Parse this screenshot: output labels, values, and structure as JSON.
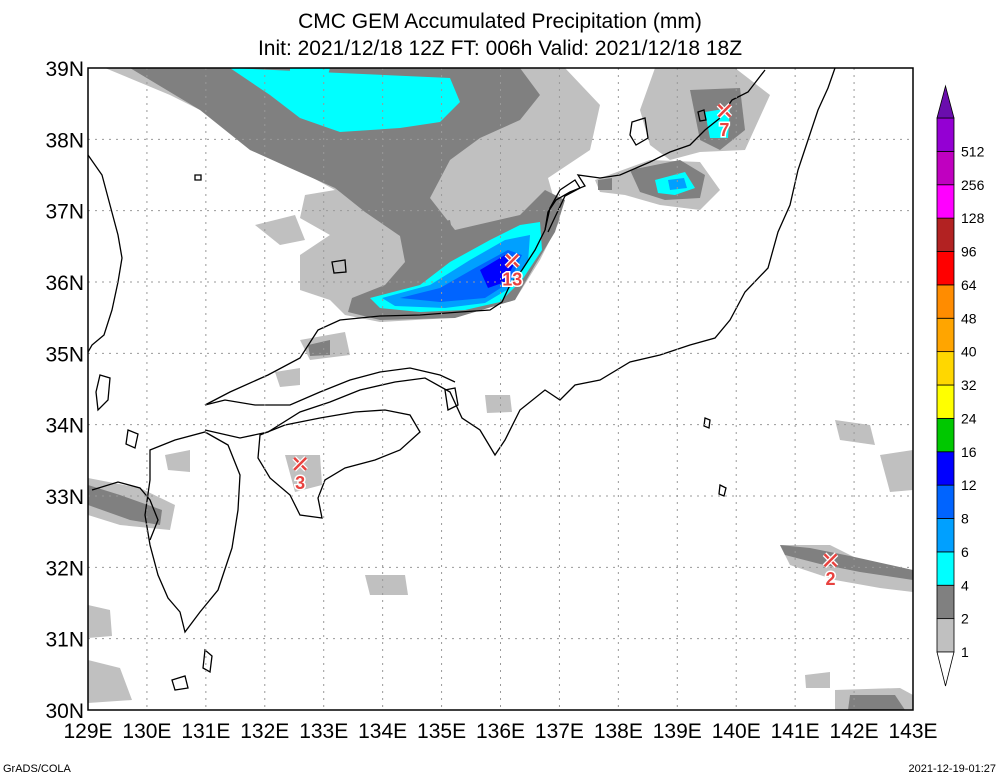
{
  "title": {
    "line1": "CMC GEM Accumulated Precipitation (mm)",
    "line2": "Init: 2021/12/18 12Z  FT: 006h  Valid: 2021/12/18 18Z"
  },
  "map": {
    "lon_range": [
      129,
      143
    ],
    "lat_range": [
      30,
      39
    ],
    "lon_ticks": [
      {
        "v": 129,
        "label": "129E"
      },
      {
        "v": 130,
        "label": "130E"
      },
      {
        "v": 131,
        "label": "131E"
      },
      {
        "v": 132,
        "label": "132E"
      },
      {
        "v": 133,
        "label": "133E"
      },
      {
        "v": 134,
        "label": "134E"
      },
      {
        "v": 135,
        "label": "135E"
      },
      {
        "v": 136,
        "label": "136E"
      },
      {
        "v": 137,
        "label": "137E"
      },
      {
        "v": 138,
        "label": "138E"
      },
      {
        "v": 139,
        "label": "139E"
      },
      {
        "v": 140,
        "label": "140E"
      },
      {
        "v": 141,
        "label": "141E"
      },
      {
        "v": 142,
        "label": "142E"
      },
      {
        "v": 143,
        "label": "143E"
      }
    ],
    "lat_ticks": [
      {
        "v": 30,
        "label": "30N"
      },
      {
        "v": 31,
        "label": "31N"
      },
      {
        "v": 32,
        "label": "32N"
      },
      {
        "v": 33,
        "label": "33N"
      },
      {
        "v": 34,
        "label": "34N"
      },
      {
        "v": 35,
        "label": "35N"
      },
      {
        "v": 36,
        "label": "36N"
      },
      {
        "v": 37,
        "label": "37N"
      },
      {
        "v": 38,
        "label": "38N"
      },
      {
        "v": 39,
        "label": "39N"
      }
    ],
    "grid": true
  },
  "colorbar": {
    "levels": [
      {
        "label": "1",
        "color": "#c0c0c0"
      },
      {
        "label": "2",
        "color": "#808080"
      },
      {
        "label": "4",
        "color": "#00ffff"
      },
      {
        "label": "6",
        "color": "#00a0ff"
      },
      {
        "label": "8",
        "color": "#0064ff"
      },
      {
        "label": "12",
        "color": "#0000ff"
      },
      {
        "label": "16",
        "color": "#00c800"
      },
      {
        "label": "24",
        "color": "#ffff00"
      },
      {
        "label": "32",
        "color": "#ffd700"
      },
      {
        "label": "40",
        "color": "#ffa500"
      },
      {
        "label": "48",
        "color": "#ff8c00"
      },
      {
        "label": "64",
        "color": "#ff0000"
      },
      {
        "label": "96",
        "color": "#b22222"
      },
      {
        "label": "128",
        "color": "#ff00ff"
      },
      {
        "label": "256",
        "color": "#c000c0"
      },
      {
        "label": "512",
        "color": "#9400d3"
      }
    ],
    "top_color": "#6a0dad"
  },
  "maxima": [
    {
      "lon": 136.2,
      "lat": 36.3,
      "label": "13"
    },
    {
      "lon": 139.8,
      "lat": 38.4,
      "label": "7"
    },
    {
      "lon": 132.6,
      "lat": 33.45,
      "label": "3"
    },
    {
      "lon": 141.6,
      "lat": 32.1,
      "label": "2"
    }
  ],
  "footer": {
    "left": "GrADS/COLA",
    "right": "2021-12-19-01:27"
  }
}
